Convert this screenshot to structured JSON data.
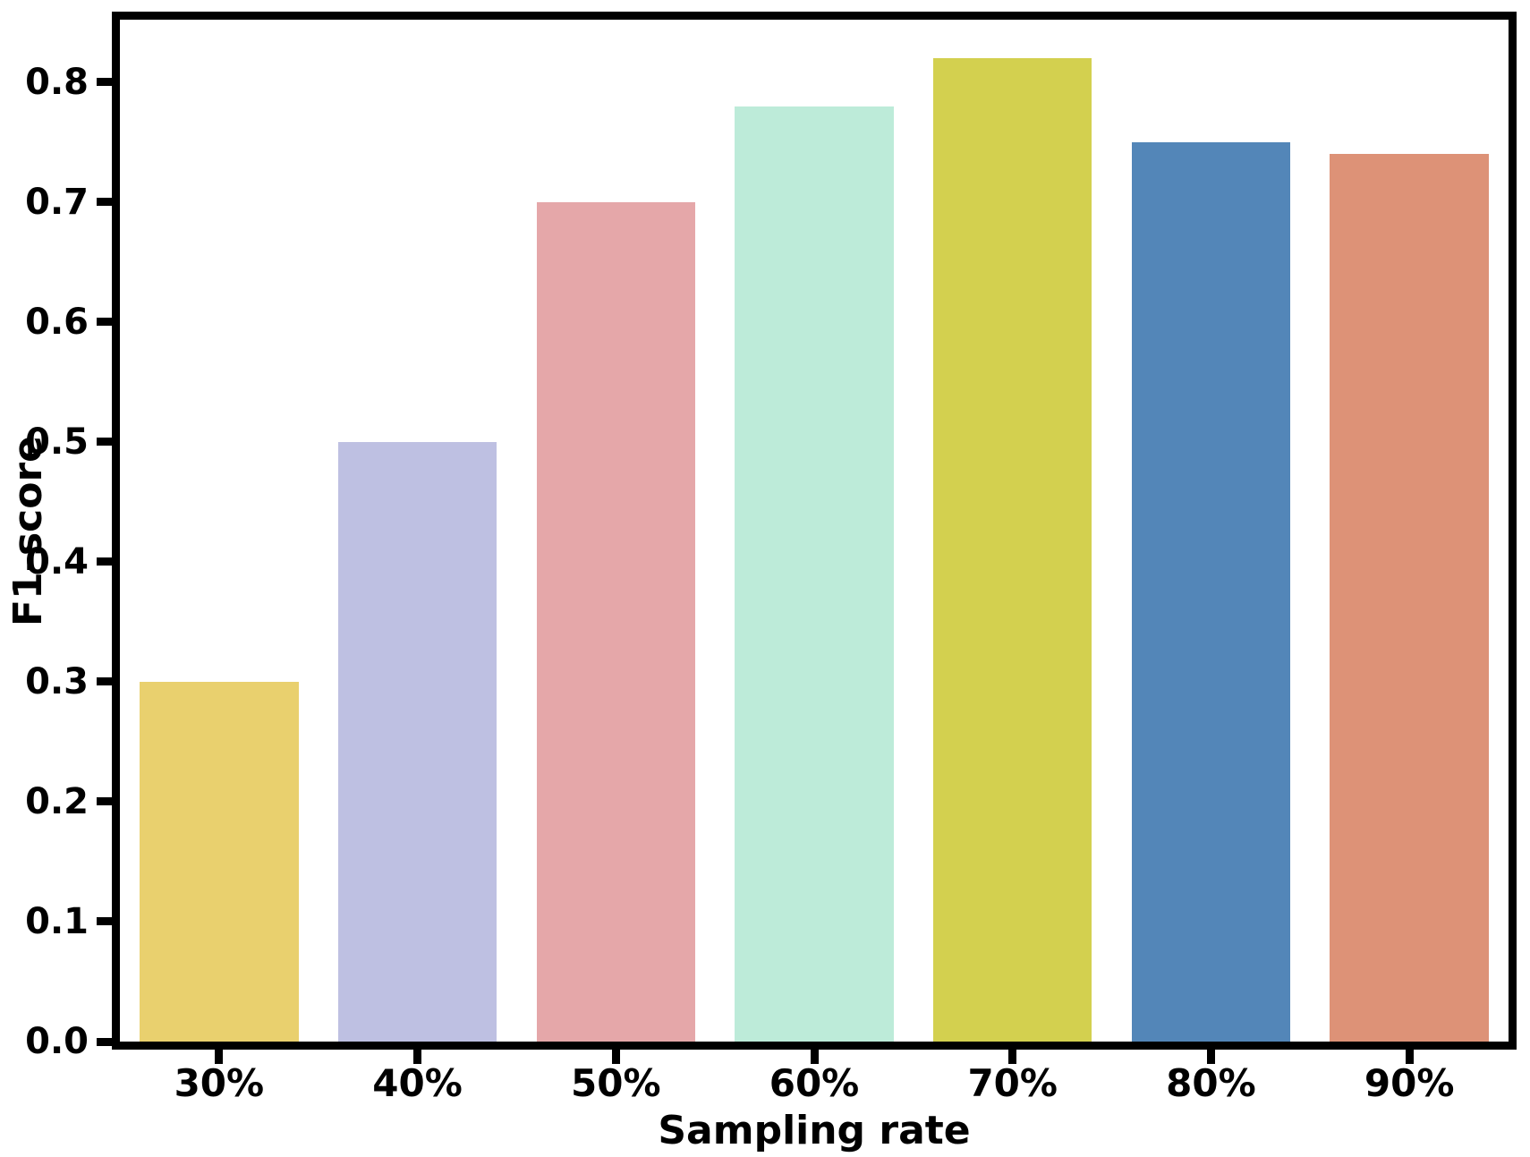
{
  "figure": {
    "background": "#ffffff",
    "spine_color": "#000000",
    "text_color": "#000000"
  },
  "chart_data": {
    "type": "bar",
    "title": "",
    "xlabel": "Sampling rate",
    "ylabel": "F1-score",
    "categories": [
      "30%",
      "40%",
      "50%",
      "60%",
      "70%",
      "80%",
      "90%"
    ],
    "values": [
      0.3,
      0.5,
      0.7,
      0.78,
      0.82,
      0.75,
      0.74
    ],
    "bar_colors": [
      "#e9d06e",
      "#bec0e2",
      "#e5a7a9",
      "#bdebd9",
      "#d3d04f",
      "#5386b8",
      "#dd9277"
    ],
    "ytick_labels": [
      "0.0",
      "0.1",
      "0.2",
      "0.3",
      "0.4",
      "0.5",
      "0.6",
      "0.7",
      "0.8"
    ],
    "ytick_values": [
      0.0,
      0.1,
      0.2,
      0.3,
      0.4,
      0.5,
      0.6,
      0.7,
      0.8
    ],
    "ylim": [
      0.0,
      0.852
    ],
    "bar_width_fraction": 0.8,
    "grid": false,
    "legend": false
  }
}
